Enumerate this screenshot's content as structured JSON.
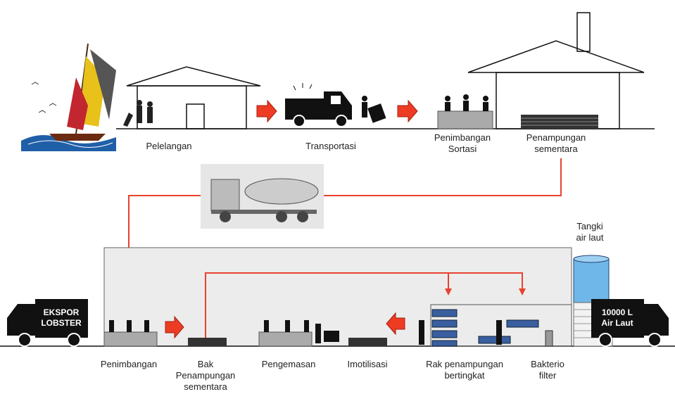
{
  "top_labels": [
    {
      "lines": [
        "Pelelangan"
      ]
    },
    {
      "lines": [
        "Transportasi"
      ]
    },
    {
      "lines": [
        "Penimbangan",
        "Sortasi"
      ]
    },
    {
      "lines": [
        "Penampungan",
        "sementara"
      ]
    }
  ],
  "bottom_labels": [
    {
      "lines": [
        "Penimbangan"
      ]
    },
    {
      "lines": [
        "Bak",
        "Penampungan",
        "sementara"
      ]
    },
    {
      "lines": [
        "Pengemasan"
      ]
    },
    {
      "lines": [
        "Imotilisasi"
      ]
    },
    {
      "lines": [
        "Rak penampungan",
        "bertingkat"
      ]
    },
    {
      "lines": [
        "Bakterio",
        "filter"
      ]
    }
  ],
  "tank_label": {
    "lines": [
      "Tangki",
      "air laut"
    ]
  },
  "trucks": {
    "export": [
      "EKSPOR",
      "LOBSTER"
    ],
    "water": [
      "10000 L",
      "Air Laut"
    ]
  }
}
